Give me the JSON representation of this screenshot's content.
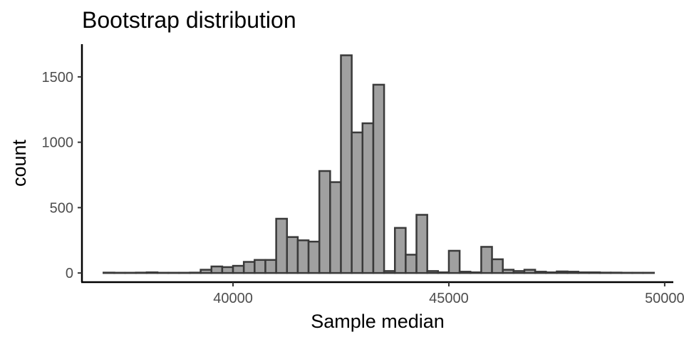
{
  "chart_data": {
    "type": "histogram",
    "title": "Bootstrap distribution",
    "xlabel": "Sample median",
    "ylabel": "count",
    "xlim": [
      36500,
      50200
    ],
    "ylim": [
      -70,
      1750
    ],
    "x_ticks": [
      40000,
      45000,
      50000
    ],
    "y_ticks": [
      0,
      500,
      1000,
      1500
    ],
    "bin_width": 250,
    "bins_start": 37000,
    "counts": [
      3,
      2,
      2,
      3,
      5,
      2,
      2,
      2,
      3,
      25,
      50,
      45,
      55,
      85,
      100,
      100,
      415,
      275,
      250,
      240,
      780,
      695,
      1665,
      1075,
      1145,
      1440,
      15,
      345,
      140,
      445,
      15,
      5,
      170,
      10,
      5,
      200,
      105,
      25,
      15,
      25,
      10,
      5,
      12,
      10,
      5,
      5,
      3,
      3,
      2,
      2,
      2
    ],
    "bar_fill": "#a0a0a0",
    "bar_stroke": "#3a3a3a",
    "legend": "none",
    "grid": false
  }
}
